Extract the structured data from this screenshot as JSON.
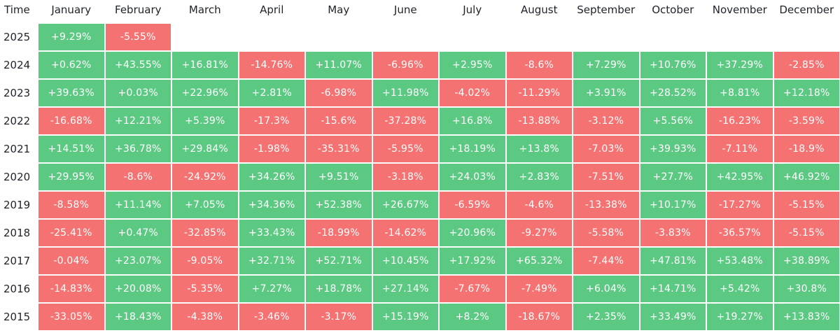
{
  "colors": {
    "positive": "#5cc983",
    "negative": "#f57272",
    "text": "#1e2329"
  },
  "chart_data": {
    "type": "heatmap",
    "corner_label": "Time",
    "columns": [
      "January",
      "February",
      "March",
      "April",
      "May",
      "June",
      "July",
      "August",
      "September",
      "October",
      "November",
      "December"
    ],
    "rows": [
      {
        "year": "2025",
        "values": [
          "+9.29%",
          "-5.55%"
        ]
      },
      {
        "year": "2024",
        "values": [
          "+0.62%",
          "+43.55%",
          "+16.81%",
          "-14.76%",
          "+11.07%",
          "-6.96%",
          "+2.95%",
          "-8.6%",
          "+7.29%",
          "+10.76%",
          "+37.29%",
          "-2.85%"
        ]
      },
      {
        "year": "2023",
        "values": [
          "+39.63%",
          "+0.03%",
          "+22.96%",
          "+2.81%",
          "-6.98%",
          "+11.98%",
          "-4.02%",
          "-11.29%",
          "+3.91%",
          "+28.52%",
          "+8.81%",
          "+12.18%"
        ]
      },
      {
        "year": "2022",
        "values": [
          "-16.68%",
          "+12.21%",
          "+5.39%",
          "-17.3%",
          "-15.6%",
          "-37.28%",
          "+16.8%",
          "-13.88%",
          "-3.12%",
          "+5.56%",
          "-16.23%",
          "-3.59%"
        ]
      },
      {
        "year": "2021",
        "values": [
          "+14.51%",
          "+36.78%",
          "+29.84%",
          "-1.98%",
          "-35.31%",
          "-5.95%",
          "+18.19%",
          "+13.8%",
          "-7.03%",
          "+39.93%",
          "-7.11%",
          "-18.9%"
        ]
      },
      {
        "year": "2020",
        "values": [
          "+29.95%",
          "-8.6%",
          "-24.92%",
          "+34.26%",
          "+9.51%",
          "-3.18%",
          "+24.03%",
          "+2.83%",
          "-7.51%",
          "+27.7%",
          "+42.95%",
          "+46.92%"
        ]
      },
      {
        "year": "2019",
        "values": [
          "-8.58%",
          "+11.14%",
          "+7.05%",
          "+34.36%",
          "+52.38%",
          "+26.67%",
          "-6.59%",
          "-4.6%",
          "-13.38%",
          "+10.17%",
          "-17.27%",
          "-5.15%"
        ]
      },
      {
        "year": "2018",
        "values": [
          "-25.41%",
          "+0.47%",
          "-32.85%",
          "+33.43%",
          "-18.99%",
          "-14.62%",
          "+20.96%",
          "-9.27%",
          "-5.58%",
          "-3.83%",
          "-36.57%",
          "-5.15%"
        ]
      },
      {
        "year": "2017",
        "values": [
          "-0.04%",
          "+23.07%",
          "-9.05%",
          "+32.71%",
          "+52.71%",
          "+10.45%",
          "+17.92%",
          "+65.32%",
          "-7.44%",
          "+47.81%",
          "+53.48%",
          "+38.89%"
        ]
      },
      {
        "year": "2016",
        "values": [
          "-14.83%",
          "+20.08%",
          "-5.35%",
          "+7.27%",
          "+18.78%",
          "+27.14%",
          "-7.67%",
          "-7.49%",
          "+6.04%",
          "+14.71%",
          "+5.42%",
          "+30.8%"
        ]
      },
      {
        "year": "2015",
        "values": [
          "-33.05%",
          "+18.43%",
          "-4.38%",
          "-3.46%",
          "-3.17%",
          "+15.19%",
          "+8.2%",
          "-18.67%",
          "+2.35%",
          "+33.49%",
          "+19.27%",
          "+13.83%"
        ]
      }
    ]
  }
}
